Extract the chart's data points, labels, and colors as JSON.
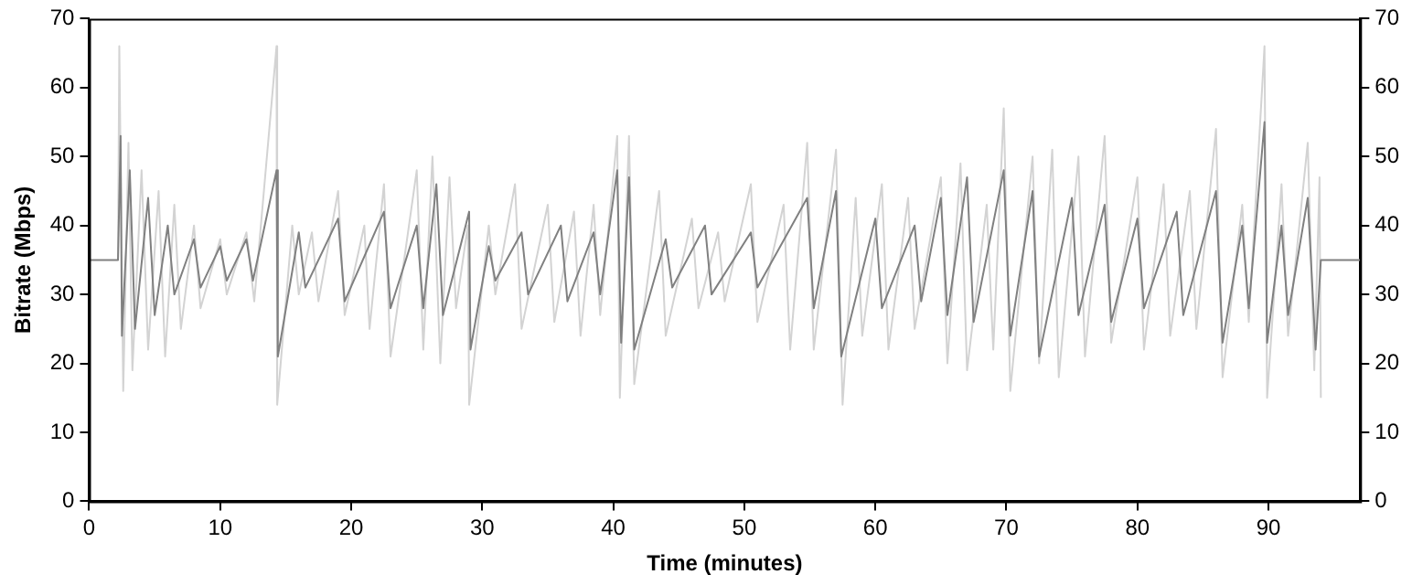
{
  "chart_data": {
    "type": "line",
    "xlabel": "Time (minutes)",
    "ylabel": "Bitrate (Mbps)",
    "xlim": [
      0,
      97
    ],
    "xticks": [
      0,
      10,
      20,
      30,
      40,
      50,
      60,
      70,
      80,
      90
    ],
    "ylim": [
      0,
      70
    ],
    "yticks": [
      0,
      10,
      20,
      30,
      40,
      50,
      60,
      70
    ],
    "y2lim": [
      0,
      70
    ],
    "y2ticks": [
      0,
      10,
      20,
      30,
      40,
      50,
      60,
      70
    ],
    "grid": false,
    "legend": false,
    "marker": "none",
    "line_style": "solid",
    "series": [
      {
        "color": "#d3d3d3",
        "x": [
          2.2,
          2.3,
          2.6,
          3.0,
          3.3,
          4.0,
          4.5,
          5.3,
          5.8,
          6.5,
          7.0,
          8.0,
          8.5,
          10,
          10.5,
          12,
          12.6,
          14.3,
          14.35,
          15.5,
          16,
          17,
          17.5,
          19,
          19.5,
          21,
          21.4,
          22.5,
          23,
          25,
          25.5,
          26.2,
          26.8,
          27.5,
          28,
          28.9,
          29.0,
          30.5,
          31,
          32.5,
          33,
          35,
          35.5,
          37,
          37.5,
          38.5,
          39,
          40.3,
          40.5,
          41.2,
          41.6,
          43.5,
          44,
          46,
          46.5,
          48,
          48.5,
          50.5,
          51,
          53,
          53.5,
          54.8,
          55.3,
          57,
          57.5,
          58.5,
          59,
          60.5,
          61,
          62.5,
          63,
          65,
          65.5,
          66.5,
          67,
          68.5,
          69,
          69.8,
          70.3,
          72,
          72.5,
          73.5,
          74,
          75.5,
          76,
          77.5,
          78,
          80,
          80.5,
          82,
          82.5,
          84,
          84.5,
          86,
          86.5,
          88,
          88.5,
          89.7,
          89.9,
          91,
          91.5,
          93,
          93.5,
          93.9,
          94
        ],
        "values": [
          35,
          66,
          16,
          52,
          19,
          48,
          22,
          45,
          21,
          43,
          25,
          40,
          28,
          38,
          30,
          39,
          29,
          66,
          14,
          40,
          30,
          39,
          29,
          45,
          27,
          40,
          25,
          46,
          21,
          48,
          22,
          50,
          20,
          47,
          28,
          40,
          14,
          40,
          30,
          46,
          25,
          43,
          26,
          42,
          24,
          43,
          27,
          53,
          15,
          53,
          17,
          45,
          24,
          41,
          28,
          39,
          29,
          46,
          26,
          43,
          22,
          52,
          22,
          51,
          14,
          44,
          24,
          46,
          22,
          44,
          25,
          47,
          20,
          49,
          19,
          43,
          22,
          57,
          16,
          50,
          20,
          51,
          18,
          50,
          21,
          53,
          23,
          47,
          22,
          46,
          24,
          45,
          25,
          54,
          18,
          43,
          26,
          66,
          15,
          46,
          24,
          52,
          19,
          47,
          15
        ]
      },
      {
        "color": "#808080",
        "x": [
          0,
          2.2,
          2.4,
          2.5,
          3.1,
          3.5,
          4.5,
          5,
          6,
          6.5,
          8,
          8.5,
          10,
          10.5,
          12,
          12.5,
          14.3,
          14.4,
          16,
          16.5,
          19,
          19.5,
          22.5,
          23,
          25,
          25.5,
          26.5,
          27,
          29,
          29.1,
          30.5,
          31,
          33,
          33.5,
          36,
          36.5,
          38.5,
          39,
          40.3,
          40.6,
          41.2,
          41.6,
          44,
          44.5,
          47,
          47.5,
          50.5,
          51,
          54.8,
          55.3,
          57,
          57.4,
          60,
          60.5,
          63,
          63.5,
          65,
          65.5,
          67,
          67.5,
          69.8,
          70.3,
          72,
          72.5,
          75,
          75.5,
          77.5,
          78,
          80,
          80.5,
          83,
          83.5,
          86,
          86.5,
          88,
          88.5,
          89.7,
          89.9,
          91,
          91.5,
          93,
          93.6,
          94,
          97
        ],
        "values": [
          35,
          35,
          53,
          24,
          48,
          25,
          44,
          27,
          40,
          30,
          38,
          31,
          37,
          32,
          38,
          32,
          48,
          21,
          39,
          31,
          41,
          29,
          42,
          28,
          40,
          28,
          46,
          27,
          42,
          22,
          37,
          32,
          39,
          30,
          40,
          29,
          39,
          30,
          48,
          23,
          47,
          22,
          38,
          31,
          40,
          30,
          39,
          31,
          44,
          28,
          45,
          21,
          41,
          28,
          40,
          29,
          44,
          27,
          47,
          26,
          48,
          24,
          45,
          21,
          44,
          27,
          43,
          26,
          41,
          28,
          42,
          27,
          45,
          23,
          40,
          28,
          55,
          23,
          40,
          27,
          44,
          22,
          35,
          35
        ]
      }
    ]
  }
}
